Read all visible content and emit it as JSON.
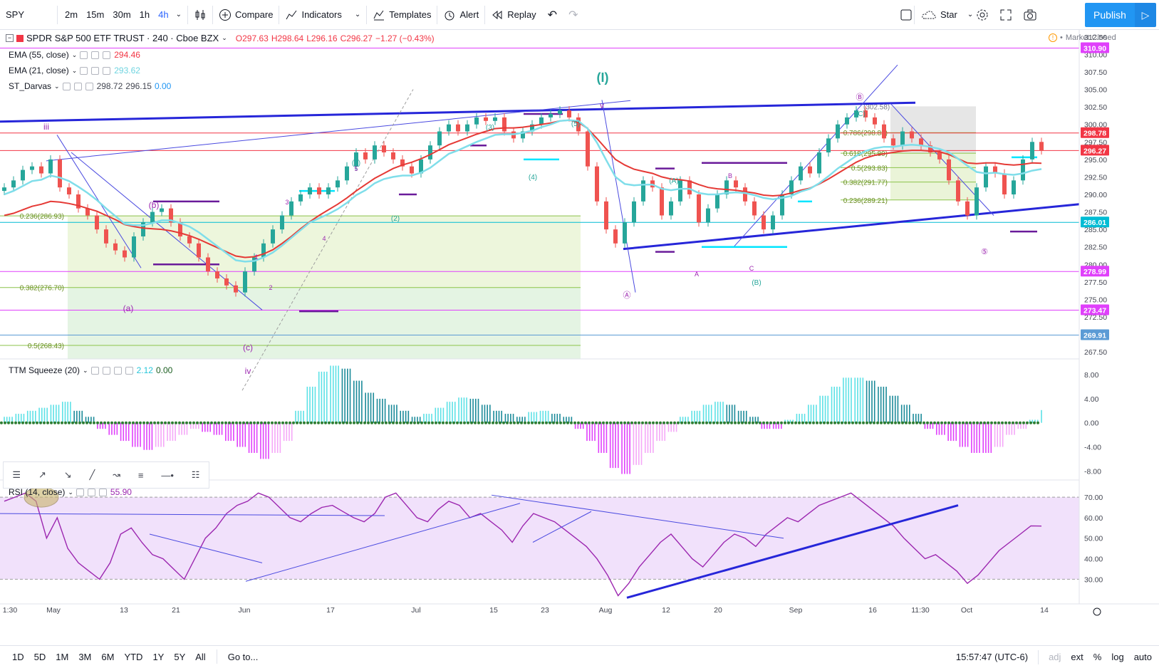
{
  "toolbar": {
    "symbol": "SPY",
    "intervals": [
      "2m",
      "15m",
      "30m",
      "1h",
      "4h"
    ],
    "active_interval": "4h",
    "compare": "Compare",
    "indicators": "Indicators",
    "templates": "Templates",
    "alert": "Alert",
    "replay": "Replay",
    "star": "Star",
    "publish": "Publish",
    "icons": [
      "candles-icon",
      "plus-circle-icon",
      "indicators-icon",
      "templates-icon",
      "alarm-clock-icon",
      "replay-icon",
      "undo-icon",
      "redo-icon",
      "square-icon",
      "cloud-icon",
      "gear-icon",
      "fullscreen-icon",
      "camera-icon",
      "play-icon"
    ]
  },
  "legend": {
    "title": "SPDR S&P 500 ETF TRUST · 240 · Cboe BZX",
    "ohlc": {
      "o": "O297.63",
      "h": "H298.64",
      "l": "L296.16",
      "c": "C296.27",
      "chg": "−1.27 (−0.43%)"
    },
    "market_status": "Market Closed",
    "ema55": {
      "label": "EMA (55, close)",
      "value": "294.46"
    },
    "ema21": {
      "label": "EMA (21, close)",
      "value": "293.62"
    },
    "darvas": {
      "label": "ST_Darvas",
      "v1": "298.72",
      "v2": "296.15",
      "v3": "0.00"
    },
    "ttm": {
      "label": "TTM Squeeze (20)",
      "v1": "2.12",
      "v2": "0.00"
    },
    "rsi": {
      "label": "RSI (14, close)",
      "value": "55.90"
    }
  },
  "bottom": {
    "ranges": [
      "1D",
      "5D",
      "1M",
      "3M",
      "6M",
      "YTD",
      "1Y",
      "5Y",
      "All"
    ],
    "goto": "Go to...",
    "time": "15:57:47 (UTC-6)",
    "adj": "adj",
    "ext": "ext",
    "pct": "%",
    "log": "log",
    "auto": "auto"
  },
  "chart_data": [
    {
      "type": "candlestick",
      "price_axis_ticks": [
        "312.50",
        "310.00",
        "307.50",
        "305.00",
        "302.50",
        "300.00",
        "297.50",
        "295.00",
        "292.50",
        "290.00",
        "287.50",
        "285.00",
        "282.50",
        "280.00",
        "277.50",
        "275.00",
        "272.50",
        "270.00",
        "267.50"
      ],
      "price_labels": [
        {
          "value": 310.9,
          "text": "310.90",
          "color": "#e040fb"
        },
        {
          "value": 298.78,
          "text": "298.78",
          "color": "#f23645"
        },
        {
          "value": 296.27,
          "text": "296.27",
          "color": "#f23645"
        },
        {
          "value": 286.01,
          "text": "286.01",
          "color": "#00bcd4"
        },
        {
          "value": 278.99,
          "text": "278.99",
          "color": "#e040fb"
        },
        {
          "value": 273.47,
          "text": "273.47",
          "color": "#e040fb"
        },
        {
          "value": 269.91,
          "text": "269.91",
          "color": "#5b9bd5"
        }
      ],
      "time_axis": [
        "1:30",
        "May",
        "13",
        "21",
        "Jun",
        "17",
        "Jul",
        "15",
        "23",
        "Aug",
        "12",
        "20",
        "Sep",
        "16",
        "11:30",
        "Oct",
        "14"
      ],
      "series": [
        {
          "name": "SPY",
          "close": [
            291,
            292,
            293.5,
            294,
            293,
            295,
            291,
            290,
            288,
            287,
            285,
            283,
            282,
            281,
            284,
            286,
            287.5,
            288,
            286,
            284,
            283,
            281,
            279,
            278,
            277,
            276,
            279,
            281,
            283,
            285,
            287,
            289,
            290,
            291,
            290,
            291,
            292,
            294,
            296,
            295,
            297,
            296,
            295,
            294,
            293,
            295,
            297,
            299,
            300,
            299,
            300,
            301,
            300.5,
            301,
            299,
            298,
            299,
            300,
            301,
            301.5,
            302,
            301,
            299,
            294,
            289,
            285,
            283,
            286,
            289,
            292,
            291,
            287,
            289,
            292,
            290,
            286,
            288,
            290,
            292,
            291,
            289,
            287,
            285,
            287,
            290,
            292,
            294,
            293,
            296,
            298,
            300,
            301,
            302,
            301,
            300,
            298,
            297,
            299,
            298,
            297,
            296,
            295,
            292,
            289,
            287,
            291,
            294,
            293,
            290,
            292,
            295,
            297.5,
            296.3
          ]
        },
        {
          "name": "EMA (55, close)",
          "close": [
            287,
            287.3,
            287.8,
            288.3,
            288.6,
            289,
            288.9,
            288.7,
            288.4,
            288,
            287.6,
            287,
            286.4,
            285.7,
            285.4,
            285.2,
            285.1,
            285,
            284.8,
            284.5,
            284.1,
            283.6,
            283,
            282.4,
            281.8,
            281.2,
            281,
            281.1,
            281.5,
            282.1,
            283,
            284,
            285.1,
            286.1,
            287,
            287.8,
            288.6,
            289.5,
            290.5,
            291.4,
            292.3,
            293,
            293.7,
            294.2,
            294.6,
            295.1,
            295.7,
            296.4,
            297.1,
            297.6,
            298.1,
            298.6,
            299,
            299.4,
            299.5,
            299.5,
            299.6,
            299.8,
            300,
            300.2,
            300.5,
            300.6,
            300.3,
            299.4,
            298,
            296.5,
            295,
            294.2,
            293.6,
            293.3,
            293,
            292.5,
            292.2,
            292.1,
            291.9,
            291.4,
            291,
            290.8,
            290.7,
            290.6,
            290.4,
            290.2,
            289.9,
            289.8,
            289.9,
            290.2,
            290.6,
            290.9,
            291.5,
            292.2,
            293,
            293.8,
            294.6,
            295.2,
            295.6,
            295.8,
            296,
            296.2,
            296.3,
            296.3,
            296.2,
            296.1,
            295.7,
            295.1,
            294.5,
            294.4,
            294.5,
            294.5,
            294.3,
            294.2,
            294.3,
            294.5,
            294.46
          ]
        },
        {
          "name": "EMA (21, close)",
          "close": [
            290,
            290.5,
            291.2,
            291.9,
            292.1,
            292.7,
            292.4,
            291.9,
            291.1,
            290.2,
            289.2,
            288,
            286.9,
            285.8,
            285.6,
            285.6,
            285.9,
            286.3,
            286.3,
            285.9,
            285.4,
            284.6,
            283.6,
            282.6,
            281.6,
            280.6,
            280.4,
            280.5,
            281,
            281.7,
            282.7,
            283.8,
            284.9,
            286,
            286.6,
            287.2,
            287.9,
            288.8,
            289.9,
            290.6,
            291.6,
            292.2,
            292.5,
            292.7,
            292.7,
            293.1,
            293.8,
            294.8,
            295.8,
            296.3,
            296.9,
            297.5,
            298,
            298.5,
            298.6,
            298.6,
            298.8,
            299.1,
            299.6,
            300,
            300.5,
            300.6,
            300.5,
            299.4,
            297.4,
            294.9,
            292.5,
            291.5,
            291.3,
            291.4,
            291.4,
            290.8,
            290.6,
            290.8,
            290.8,
            290.2,
            290,
            290,
            290.2,
            290.3,
            290.2,
            289.9,
            289.5,
            289.3,
            289.5,
            289.8,
            290.4,
            290.8,
            291.6,
            292.6,
            293.7,
            294.6,
            295.5,
            296.2,
            296.6,
            296.8,
            296.8,
            297,
            297.1,
            297,
            296.8,
            296.5,
            296,
            295.1,
            294.1,
            293.2,
            293,
            293.1,
            292.9,
            292.8,
            293,
            293.4,
            293.62
          ]
        }
      ],
      "horizontal_levels": [
        310.9,
        298.78,
        296.27,
        286.01,
        278.99,
        273.47,
        269.91
      ],
      "fib_levels_left": [
        {
          "ratio": "0.236",
          "value": 286.93
        },
        {
          "ratio": "0.382",
          "value": 276.7
        },
        {
          "ratio": "0.5",
          "value": 268.43
        }
      ],
      "fib_levels_right": [
        {
          "ratio": "0.786",
          "value": 298.83
        },
        {
          "ratio": "0.618",
          "value": 295.89
        },
        {
          "ratio": "0.5",
          "value": 293.83
        },
        {
          "ratio": "0.382",
          "value": 291.77
        },
        {
          "ratio": "0.236",
          "value": 289.21
        }
      ],
      "high_label": "302.58",
      "wave_labels": [
        "(I)",
        "v",
        "iii",
        "iv",
        "(a)",
        "(b)",
        "(c)",
        "(1)",
        "(2)",
        "(3)",
        "(4)",
        "(5)",
        "(A)",
        "(B)",
        "(C)",
        "A",
        "B",
        "C",
        "1",
        "2",
        "3",
        "4",
        "5",
        "Ⓐ",
        "Ⓑ",
        "⑤"
      ],
      "ylim": [
        266.5,
        313.5
      ]
    },
    {
      "type": "bar",
      "name": "TTM Squeeze (20)",
      "y_ticks": [
        "8.00",
        "4.00",
        "0.00",
        "-4.00",
        "-8.00"
      ],
      "values": [
        1,
        1.5,
        2,
        2.5,
        3,
        3.5,
        2,
        1,
        -1,
        -2,
        -3,
        -4,
        -4.5,
        -4,
        -3,
        -2,
        -1,
        -1.5,
        -2,
        -3,
        -4,
        -5,
        -6,
        -5,
        -3,
        2,
        6,
        8.5,
        9.5,
        9,
        7,
        5,
        4,
        3,
        2,
        1,
        1.5,
        2.5,
        3.5,
        4.2,
        4,
        3,
        2,
        1.5,
        1,
        1.8,
        2,
        1.5,
        1,
        -1,
        -3,
        -5,
        -7.5,
        -8.5,
        -7,
        -5,
        -3,
        -1.5,
        1,
        2,
        3,
        3.5,
        3,
        2,
        1,
        -1,
        -1,
        0.5,
        1.5,
        3,
        4.5,
        6,
        7.5,
        7.5,
        7,
        6,
        4.5,
        3,
        1.5,
        -1,
        -2,
        -3,
        -4,
        -5,
        -5,
        -4,
        -2,
        -1,
        0.5,
        2.12
      ],
      "ylim": [
        -9.5,
        10.5
      ]
    },
    {
      "type": "line",
      "name": "RSI (14, close)",
      "y_ticks": [
        "70.00",
        "60.00",
        "50.00",
        "40.00",
        "30.00"
      ],
      "values": [
        68,
        70,
        72,
        68,
        50,
        60,
        45,
        38,
        34,
        30,
        38,
        52,
        55,
        48,
        42,
        40,
        35,
        30,
        40,
        50,
        55,
        62,
        66,
        68,
        72,
        70,
        65,
        60,
        58,
        62,
        65,
        66,
        63,
        60,
        58,
        62,
        70,
        72,
        66,
        60,
        58,
        64,
        68,
        66,
        60,
        62,
        58,
        54,
        48,
        56,
        62,
        60,
        58,
        54,
        50,
        46,
        40,
        32,
        22,
        28,
        36,
        42,
        48,
        52,
        46,
        40,
        36,
        42,
        48,
        52,
        50,
        46,
        52,
        56,
        60,
        58,
        62,
        66,
        68,
        70,
        72,
        68,
        64,
        60,
        56,
        50,
        45,
        40,
        42,
        38,
        34,
        28,
        32,
        38,
        44,
        48,
        52,
        56,
        55.9
      ],
      "ylim": [
        18,
        78
      ]
    }
  ]
}
